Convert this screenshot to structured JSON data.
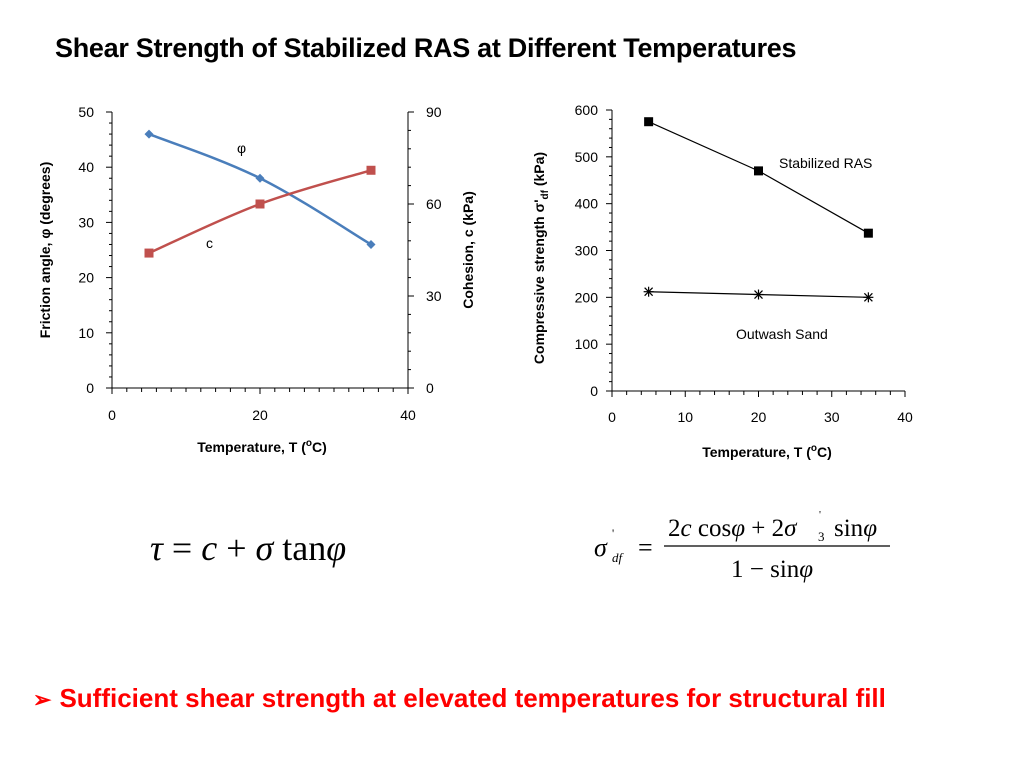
{
  "slide": {
    "title": "Shear Strength of Stabilized RAS at Different Temperatures",
    "bullet_marker": "➢",
    "bullet_text": "Sufficient shear strength at elevated temperatures for structural fill",
    "colors": {
      "phi": "#4a7ebb",
      "c": "#c0504d",
      "bullet": "#ff0000",
      "axis": "#000000"
    }
  },
  "chart_data": [
    {
      "type": "line",
      "xlabel": "Temperature, T (",
      "xlabel_sup": "o",
      "xlabel_end": "C)",
      "ylabel": "Friction angle, φ (degrees)",
      "y2label": "Cohesion, c (kPa)",
      "xlim": [
        0,
        40
      ],
      "x_ticks": [
        0,
        20,
        40
      ],
      "ylim": [
        0,
        50
      ],
      "y_ticks": [
        0,
        10,
        20,
        30,
        40,
        50
      ],
      "y2lim": [
        0,
        90
      ],
      "y2_ticks": [
        0,
        30,
        60,
        90
      ],
      "grid": false,
      "series": [
        {
          "name": "φ",
          "axis": "left",
          "marker": "diamond",
          "color": "#4a7ebb",
          "x": [
            5,
            20,
            35
          ],
          "y": [
            46,
            38,
            26
          ]
        },
        {
          "name": "c",
          "axis": "right",
          "marker": "square",
          "color": "#c0504d",
          "x": [
            5,
            20,
            35
          ],
          "y": [
            44,
            60,
            71
          ]
        }
      ]
    },
    {
      "type": "line",
      "xlabel": "Temperature, T (",
      "xlabel_sup": "o",
      "xlabel_end": "C)",
      "ylabel": "Compressive strength σ'",
      "ylabel_sub": "df",
      "ylabel_end": " (kPa)",
      "xlim": [
        0,
        40
      ],
      "x_ticks": [
        0,
        10,
        20,
        30,
        40
      ],
      "ylim": [
        0,
        600
      ],
      "y_ticks": [
        0,
        100,
        200,
        300,
        400,
        500,
        600
      ],
      "grid": false,
      "series": [
        {
          "name": "Stabilized RAS",
          "marker": "square",
          "color": "#000000",
          "x": [
            5,
            20,
            35
          ],
          "y": [
            575,
            470,
            337
          ]
        },
        {
          "name": "Outwash Sand",
          "marker": "star",
          "color": "#000000",
          "x": [
            5,
            20,
            35
          ],
          "y": [
            212,
            206,
            200
          ]
        }
      ]
    }
  ]
}
